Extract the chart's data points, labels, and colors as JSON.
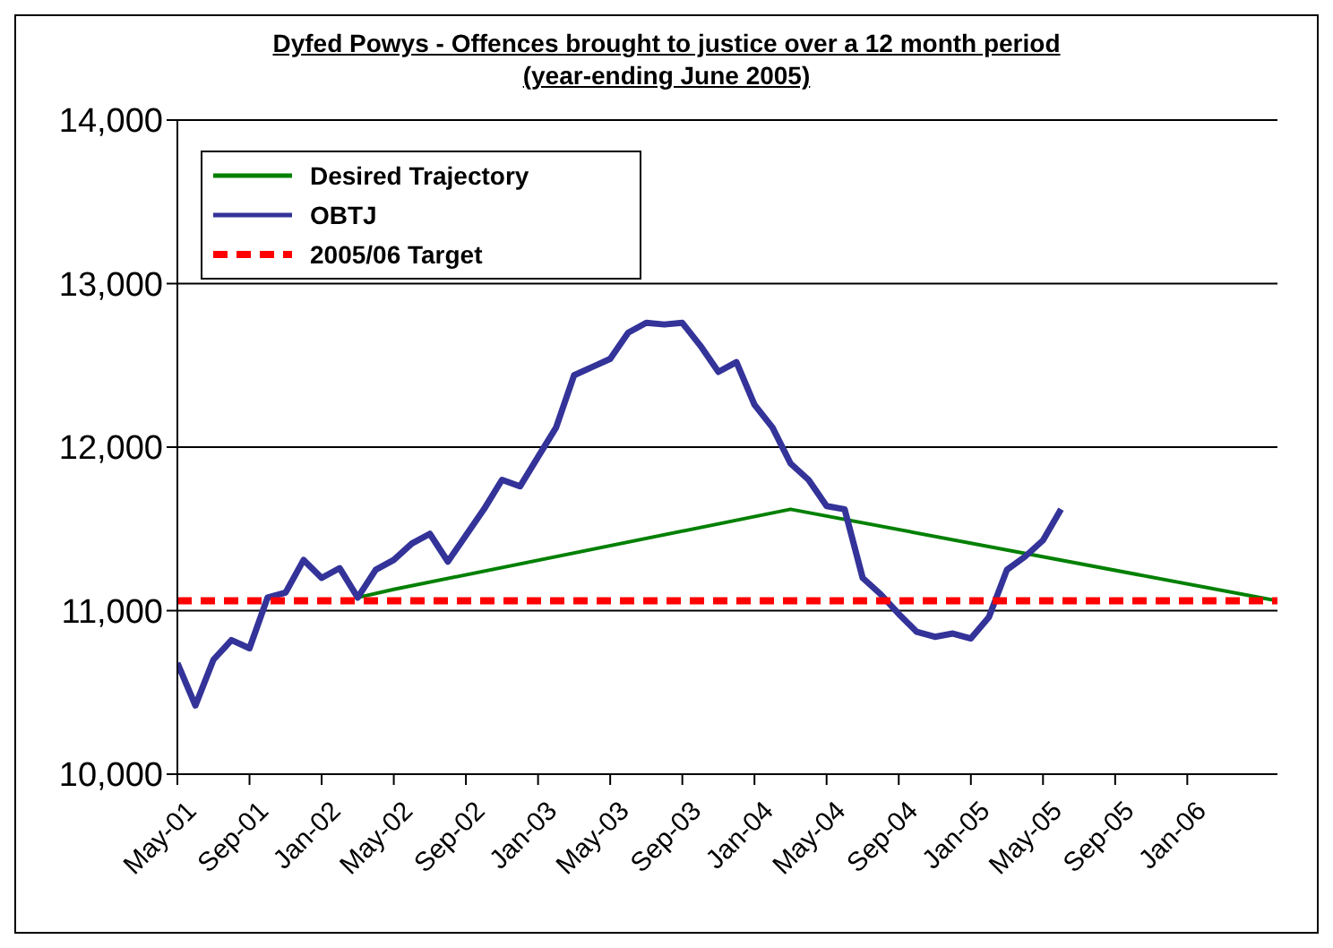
{
  "chart_data": {
    "type": "line",
    "title": "Dyfed Powys - Offences brought to justice over a 12 month period",
    "subtitle": "(year-ending June 2005)",
    "series": [
      {
        "name": "Desired Trajectory",
        "color": "#008000",
        "line_style": "solid",
        "x": [
          "2002-03",
          "2002-05",
          "2004-03",
          "2006-06"
        ],
        "values": [
          11080,
          11130,
          11620,
          11060
        ]
      },
      {
        "name": "OBTJ",
        "color": "#333399",
        "line_style": "solid",
        "x": [
          "2001-05",
          "2001-06",
          "2001-07",
          "2001-08",
          "2001-09",
          "2001-10",
          "2001-11",
          "2001-12",
          "2002-01",
          "2002-02",
          "2002-03",
          "2002-04",
          "2002-05",
          "2002-06",
          "2002-07",
          "2002-08",
          "2002-09",
          "2002-10",
          "2002-11",
          "2002-12",
          "2003-01",
          "2003-02",
          "2003-03",
          "2003-04",
          "2003-05",
          "2003-06",
          "2003-07",
          "2003-08",
          "2003-09",
          "2003-10",
          "2003-11",
          "2003-12",
          "2004-01",
          "2004-02",
          "2004-03",
          "2004-04",
          "2004-05",
          "2004-06",
          "2004-07",
          "2004-08",
          "2004-09",
          "2004-10",
          "2004-11",
          "2004-12",
          "2005-01",
          "2005-02",
          "2005-03",
          "2005-04",
          "2005-05",
          "2005-06"
        ],
        "values": [
          10680,
          10420,
          10700,
          10820,
          10770,
          11080,
          11110,
          11310,
          11200,
          11260,
          11080,
          11250,
          11310,
          11410,
          11470,
          11300,
          11460,
          11620,
          11800,
          11760,
          11940,
          12120,
          12440,
          12490,
          12540,
          12700,
          12760,
          12750,
          12760,
          12620,
          12460,
          12520,
          12260,
          12120,
          11900,
          11800,
          11640,
          11620,
          11200,
          11100,
          10980,
          10870,
          10840,
          10860,
          10830,
          10960,
          11250,
          11330,
          11430,
          11620
        ]
      },
      {
        "name": "2005/06 Target",
        "color": "#ff0000",
        "line_style": "dashed",
        "x": [
          "2001-05",
          "2006-06"
        ],
        "values": [
          11060,
          11060
        ]
      }
    ],
    "xlim": [
      "2001-05",
      "2006-06"
    ],
    "xticks": [
      {
        "value": "2001-05",
        "label": "May-01"
      },
      {
        "value": "2001-09",
        "label": "Sep-01"
      },
      {
        "value": "2002-01",
        "label": "Jan-02"
      },
      {
        "value": "2002-05",
        "label": "May-02"
      },
      {
        "value": "2002-09",
        "label": "Sep-02"
      },
      {
        "value": "2003-01",
        "label": "Jan-03"
      },
      {
        "value": "2003-05",
        "label": "May-03"
      },
      {
        "value": "2003-09",
        "label": "Sep-03"
      },
      {
        "value": "2004-01",
        "label": "Jan-04"
      },
      {
        "value": "2004-05",
        "label": "May-04"
      },
      {
        "value": "2004-09",
        "label": "Sep-04"
      },
      {
        "value": "2005-01",
        "label": "Jan-05"
      },
      {
        "value": "2005-05",
        "label": "May-05"
      },
      {
        "value": "2005-09",
        "label": "Sep-05"
      },
      {
        "value": "2006-01",
        "label": "Jan-06"
      }
    ],
    "ylim": [
      10000,
      14000
    ],
    "yticks": [
      {
        "value": 10000,
        "label": "10,000"
      },
      {
        "value": 11000,
        "label": "11,000"
      },
      {
        "value": 12000,
        "label": "12,000"
      },
      {
        "value": 13000,
        "label": "13,000"
      },
      {
        "value": 14000,
        "label": "14,000"
      }
    ],
    "grid": "y",
    "legend": "top left",
    "marker": "none"
  }
}
